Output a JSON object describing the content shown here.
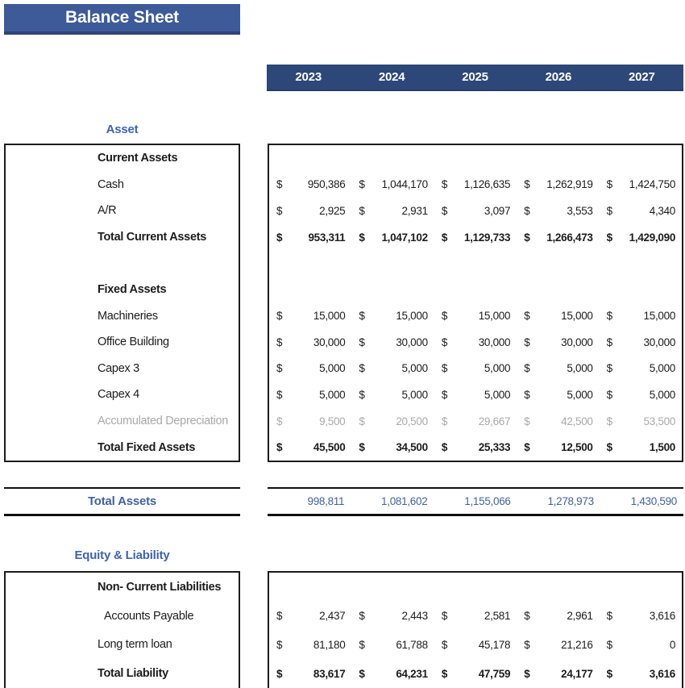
{
  "sheet": {
    "title": "Balance Sheet",
    "currency_symbol": "$"
  },
  "colors": {
    "title_bar_bg": "#3d5a99",
    "title_bar_edge": "#2e4677",
    "year_band_bg": "#2d4878",
    "accent_blue_text": "#3f62ae",
    "total_row_blue": "#44619e",
    "muted_gray_text": "#a9a9a9",
    "text_black": "#1c1c1c"
  },
  "years": [
    "2023",
    "2024",
    "2025",
    "2026",
    "2027"
  ],
  "asset": {
    "heading": "Asset",
    "rows": [
      {
        "label": "Current Assets",
        "type": "section-header",
        "values": null
      },
      {
        "label": "Cash",
        "type": "normal",
        "values": [
          "950,386",
          "1,044,170",
          "1,126,635",
          "1,262,919",
          "1,424,750"
        ]
      },
      {
        "label": "A/R",
        "type": "normal",
        "values": [
          "2,925",
          "2,931",
          "3,097",
          "3,553",
          "4,340"
        ]
      },
      {
        "label": "Total Current Assets",
        "type": "total",
        "values": [
          "953,311",
          "1,047,102",
          "1,129,733",
          "1,266,473",
          "1,429,090"
        ]
      },
      {
        "label": "",
        "type": "blank",
        "values": null
      },
      {
        "label": "Fixed Assets",
        "type": "section-header",
        "values": null
      },
      {
        "label": "Machineries",
        "type": "normal",
        "values": [
          "15,000",
          "15,000",
          "15,000",
          "15,000",
          "15,000"
        ]
      },
      {
        "label": "Office Building",
        "type": "normal",
        "values": [
          "30,000",
          "30,000",
          "30,000",
          "30,000",
          "30,000"
        ]
      },
      {
        "label": "Capex 3",
        "type": "normal",
        "values": [
          "5,000",
          "5,000",
          "5,000",
          "5,000",
          "5,000"
        ]
      },
      {
        "label": "Capex 4",
        "type": "normal",
        "values": [
          "5,000",
          "5,000",
          "5,000",
          "5,000",
          "5,000"
        ]
      },
      {
        "label": "Accumulated Depreciation",
        "type": "muted",
        "values": [
          "9,500",
          "20,500",
          "29,667",
          "42,500",
          "53,500"
        ]
      },
      {
        "label": "Total Fixed Assets",
        "type": "total",
        "values": [
          "45,500",
          "34,500",
          "25,333",
          "12,500",
          "1,500"
        ]
      }
    ]
  },
  "total_assets": {
    "label": "Total Assets",
    "values": [
      "998,811",
      "1,081,602",
      "1,155,066",
      "1,278,973",
      "1,430,590"
    ]
  },
  "liability": {
    "heading": "Equity & Liability",
    "rows": [
      {
        "label": "Non- Current Liabilities",
        "type": "section-header",
        "values": null
      },
      {
        "label": "Accounts Payable",
        "type": "normal",
        "indent": true,
        "values": [
          "2,437",
          "2,443",
          "2,581",
          "2,961",
          "3,616"
        ]
      },
      {
        "label": "Long term loan",
        "type": "normal",
        "values": [
          "81,180",
          "61,788",
          "45,178",
          "21,216",
          "0"
        ]
      },
      {
        "label": "Total Liability",
        "type": "total",
        "values": [
          "83,617",
          "64,231",
          "47,759",
          "24,177",
          "3,616"
        ]
      }
    ]
  }
}
